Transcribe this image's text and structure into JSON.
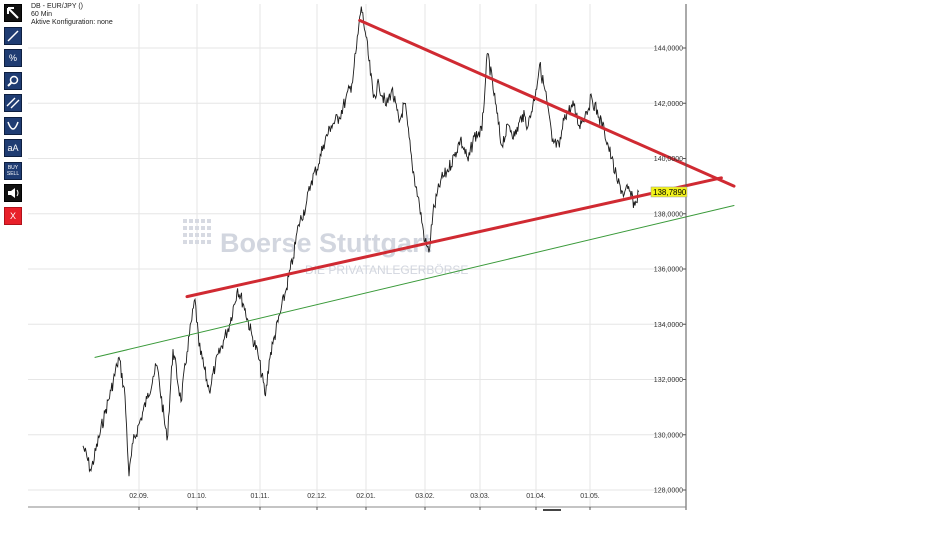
{
  "header": {
    "title": "DB - EUR/JPY ()",
    "interval": "60 Min",
    "config": "Aktive Konfiguration: none"
  },
  "toolbar": {
    "items": [
      {
        "name": "pointer-tool",
        "icon": "arrow-pointer-icon",
        "style": "black"
      },
      {
        "name": "line-tool",
        "icon": "line-draw-icon",
        "style": "blue"
      },
      {
        "name": "percent-tool",
        "icon": "percent-icon",
        "style": "blue",
        "label": "%"
      },
      {
        "name": "zoom-tool",
        "icon": "magnifier-icon",
        "style": "blue"
      },
      {
        "name": "parallel-tool",
        "icon": "parallel-lines-icon",
        "style": "blue"
      },
      {
        "name": "curve-tool",
        "icon": "curve-icon",
        "style": "blue"
      },
      {
        "name": "text-tool",
        "icon": "text-icon",
        "style": "blue",
        "label": "aA"
      },
      {
        "name": "buysell-tool",
        "icon": "buy-sell-icon",
        "style": "blue",
        "label_top": "BUY",
        "label_bottom": "SELL"
      },
      {
        "name": "sound-tool",
        "icon": "speaker-icon",
        "style": "black"
      },
      {
        "name": "delete-tool",
        "icon": "close-icon",
        "style": "red",
        "label": "X"
      }
    ]
  },
  "watermark": {
    "line1": "Boerse Stuttgart",
    "line2": "DIE PRIVATANLEGERBÖRSE"
  },
  "colors": {
    "price_line": "#1a1a1a",
    "triangle_lines": "#d02a32",
    "support_line": "#3a9a3a",
    "last_price_bg": "#f3f31a",
    "grid": "#e6e6e6"
  },
  "chart_data": {
    "type": "line",
    "instrument": "EUR/JPY",
    "interval": "60 Min",
    "y_ticks": [
      "144,0000",
      "142,0000",
      "140,0000",
      "138,0000",
      "136,0000",
      "134,0000",
      "132,0000",
      "130,0000",
      "128,0000"
    ],
    "y_tick_values": [
      144,
      142,
      140,
      138,
      136,
      134,
      132,
      130,
      128
    ],
    "ylim": [
      127.5,
      145.8
    ],
    "x_ticks": [
      "02.09.",
      "01.10.",
      "01.11.",
      "02.12.",
      "02.01.",
      "03.02.",
      "03.03.",
      "01.04.",
      "01.05."
    ],
    "last_price": 138.789,
    "last_price_label": "138,7890",
    "series": [
      {
        "name": "EUR/JPY",
        "x_start": "2013-08-05",
        "x_end": "2014-05-28",
        "points": [
          [
            "2013-08-05",
            129.6
          ],
          [
            "2013-08-09",
            128.7
          ],
          [
            "2013-08-13",
            129.9
          ],
          [
            "2013-08-16",
            130.8
          ],
          [
            "2013-08-19",
            131.6
          ],
          [
            "2013-08-22",
            132.5
          ],
          [
            "2013-08-23",
            132.8
          ],
          [
            "2013-08-26",
            131.4
          ],
          [
            "2013-08-28",
            128.5
          ],
          [
            "2013-08-30",
            129.7
          ],
          [
            "2013-09-03",
            130.6
          ],
          [
            "2013-09-06",
            131.3
          ],
          [
            "2013-09-09",
            132.1
          ],
          [
            "2013-09-11",
            132.5
          ],
          [
            "2013-09-16",
            129.8
          ],
          [
            "2013-09-19",
            133.1
          ],
          [
            "2013-09-23",
            131.2
          ],
          [
            "2013-09-26",
            133.0
          ],
          [
            "2013-09-30",
            134.9
          ],
          [
            "2013-10-02",
            133.2
          ],
          [
            "2013-10-07",
            131.6
          ],
          [
            "2013-10-10",
            132.5
          ],
          [
            "2013-10-14",
            133.4
          ],
          [
            "2013-10-17",
            134.0
          ],
          [
            "2013-10-21",
            135.3
          ],
          [
            "2013-10-24",
            134.7
          ],
          [
            "2013-10-28",
            133.6
          ],
          [
            "2013-10-31",
            132.9
          ],
          [
            "2013-11-04",
            131.4
          ],
          [
            "2013-11-06",
            132.7
          ],
          [
            "2013-11-08",
            133.3
          ],
          [
            "2013-11-12",
            134.4
          ],
          [
            "2013-11-15",
            135.2
          ],
          [
            "2013-11-19",
            136.4
          ],
          [
            "2013-11-22",
            137.6
          ],
          [
            "2013-11-26",
            138.3
          ],
          [
            "2013-11-29",
            139.2
          ],
          [
            "2013-12-03",
            139.8
          ],
          [
            "2013-12-06",
            140.5
          ],
          [
            "2013-12-11",
            141.2
          ],
          [
            "2013-12-16",
            141.5
          ],
          [
            "2013-12-20",
            142.1
          ],
          [
            "2013-12-24",
            142.7
          ],
          [
            "2013-12-27",
            144.0
          ],
          [
            "2013-12-30",
            145.5
          ],
          [
            "2014-01-02",
            144.4
          ],
          [
            "2014-01-06",
            142.2
          ],
          [
            "2014-01-09",
            142.7
          ],
          [
            "2014-01-13",
            141.9
          ],
          [
            "2014-01-16",
            142.5
          ],
          [
            "2014-01-20",
            141.3
          ],
          [
            "2014-01-23",
            142.0
          ],
          [
            "2014-01-27",
            139.8
          ],
          [
            "2014-01-31",
            138.3
          ],
          [
            "2014-02-03",
            137.0
          ],
          [
            "2014-02-05",
            136.6
          ],
          [
            "2014-02-07",
            138.0
          ],
          [
            "2014-02-11",
            139.2
          ],
          [
            "2014-02-14",
            139.5
          ],
          [
            "2014-02-18",
            140.1
          ],
          [
            "2014-02-21",
            140.7
          ],
          [
            "2014-02-25",
            139.9
          ],
          [
            "2014-02-28",
            140.8
          ],
          [
            "2014-03-04",
            141.0
          ],
          [
            "2014-03-06",
            143.0
          ],
          [
            "2014-03-07",
            143.8
          ],
          [
            "2014-03-11",
            142.0
          ],
          [
            "2014-03-14",
            140.5
          ],
          [
            "2014-03-18",
            141.2
          ],
          [
            "2014-03-21",
            140.8
          ],
          [
            "2014-03-25",
            141.6
          ],
          [
            "2014-03-28",
            141.2
          ],
          [
            "2014-04-01",
            142.5
          ],
          [
            "2014-04-03",
            143.4
          ],
          [
            "2014-04-07",
            142.1
          ],
          [
            "2014-04-10",
            140.6
          ],
          [
            "2014-04-14",
            140.4
          ],
          [
            "2014-04-17",
            141.6
          ],
          [
            "2014-04-22",
            141.9
          ],
          [
            "2014-04-25",
            141.2
          ],
          [
            "2014-04-29",
            141.7
          ],
          [
            "2014-05-02",
            142.2
          ],
          [
            "2014-05-06",
            141.5
          ],
          [
            "2014-05-09",
            141.0
          ],
          [
            "2014-05-13",
            140.0
          ],
          [
            "2014-05-16",
            139.2
          ],
          [
            "2014-05-20",
            138.7
          ],
          [
            "2014-05-22",
            138.9
          ],
          [
            "2014-05-26",
            138.3
          ],
          [
            "2014-05-28",
            138.79
          ]
        ]
      }
    ],
    "trendlines": [
      {
        "name": "triangle-upper",
        "color": "#d02a32",
        "from": [
          "2013-12-29",
          145.0
        ],
        "to": [
          "2014-07-20",
          139.0
        ]
      },
      {
        "name": "triangle-lower",
        "color": "#d02a32",
        "from": [
          "2013-09-26",
          135.0
        ],
        "to": [
          "2014-07-13",
          139.3
        ]
      },
      {
        "name": "support-line",
        "color": "#3a9a3a",
        "from": [
          "2013-08-11",
          132.8
        ],
        "to": [
          "2014-07-20",
          138.3
        ]
      }
    ]
  }
}
